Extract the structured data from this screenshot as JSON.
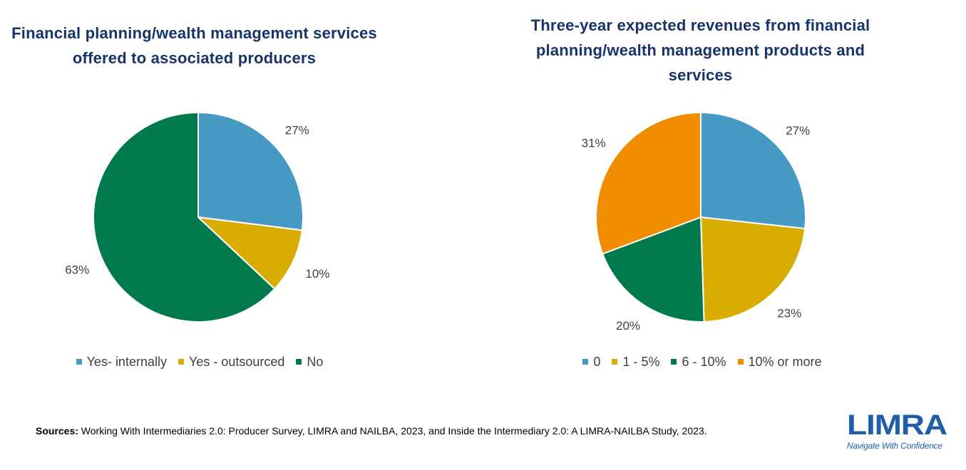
{
  "chart_data": [
    {
      "type": "pie",
      "title": "Financial planning/wealth management services offered to associated producers",
      "categories": [
        "Yes- internally",
        "Yes - outsourced",
        "No"
      ],
      "values": [
        27,
        10,
        63
      ],
      "labels": [
        "27%",
        "10%",
        "63%"
      ],
      "colors": [
        "#4599c3",
        "#d8ac00",
        "#007a4c"
      ],
      "legend_position": "bottom"
    },
    {
      "type": "pie",
      "title": "Three-year expected revenues from financial planning/wealth management products and services",
      "categories": [
        "0",
        "1 - 5%",
        "6 - 10%",
        "10% or more"
      ],
      "values": [
        27,
        23,
        20,
        31
      ],
      "labels": [
        "27%",
        "23%",
        "20%",
        "31%"
      ],
      "colors": [
        "#4599c3",
        "#d8ac00",
        "#007a4c",
        "#ef8c00"
      ],
      "legend_position": "bottom"
    }
  ],
  "footer": {
    "source_label": "Sources:",
    "source_text": " Working With Intermediaries 2.0: Producer Survey, LIMRA and NAILBA, 2023, and Inside the Intermediary 2.0: A LIMRA-NAILBA Study, 2023."
  },
  "logo": {
    "name": "LIMRA",
    "tagline": "Navigate With Confidence",
    "color": "#1e5fa8"
  }
}
